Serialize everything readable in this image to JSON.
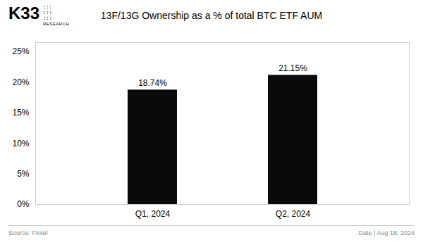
{
  "chart_data": {
    "type": "bar",
    "title": "13F/13G Ownership as a % of total BTC ETF AUM",
    "categories": [
      "Q1, 2024",
      "Q2, 2024"
    ],
    "values": [
      18.74,
      21.15
    ],
    "value_labels": [
      "18.74%",
      "21.15%"
    ],
    "data_labels": true,
    "color": "#0a0a0a",
    "ylim": [
      0,
      26.5
    ],
    "yticks": [
      {
        "value": 0,
        "label": "0%"
      },
      {
        "value": 5,
        "label": "5%"
      },
      {
        "value": 10,
        "label": "10%"
      },
      {
        "value": 15,
        "label": "15%"
      },
      {
        "value": 20,
        "label": "20%"
      },
      {
        "value": 25,
        "label": "25%"
      }
    ],
    "grid": false,
    "annotations": [
      "K33",
      ":::\n:::\n:::",
      "RESEARCH",
      "Source: Fintel",
      "Date | Aug 18, 2024"
    ]
  }
}
